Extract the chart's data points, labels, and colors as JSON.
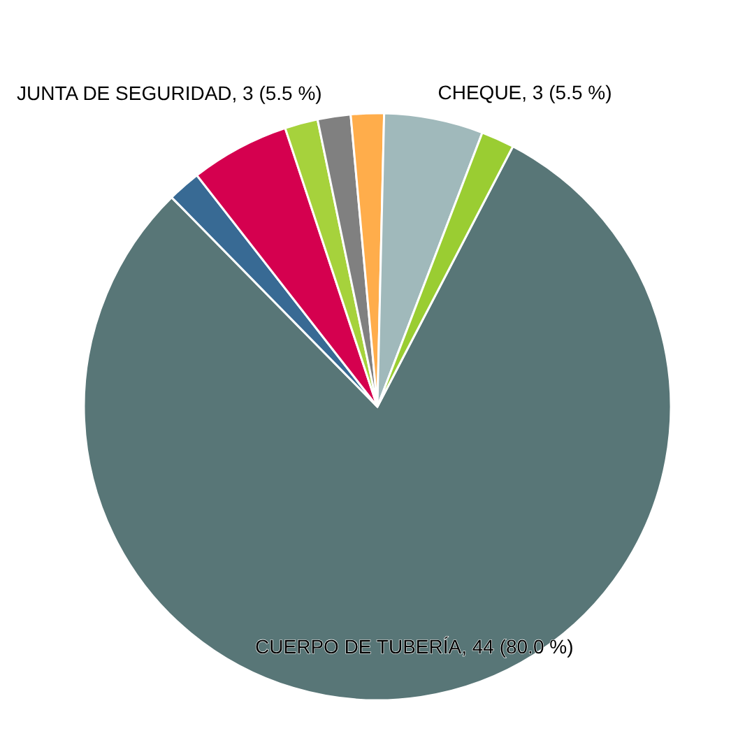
{
  "chart_data": {
    "type": "pie",
    "categories": [
      "CUERPO DE TUBERÍA",
      null,
      "JUNTA DE SEGURIDAD",
      null,
      null,
      null,
      "CHEQUE",
      null
    ],
    "values": [
      44,
      1,
      3,
      1,
      1,
      1,
      3,
      1
    ],
    "colors": [
      "#587677",
      "#386a94",
      "#d5004f",
      "#a6d23c",
      "#808080",
      "#ffad4b",
      "#a0b9bb",
      "#9acd32"
    ],
    "value_labels": [
      "44 (80.0 %)",
      null,
      "3 (5.5 %)",
      null,
      null,
      null,
      "3 (5.5 %)",
      null
    ]
  }
}
